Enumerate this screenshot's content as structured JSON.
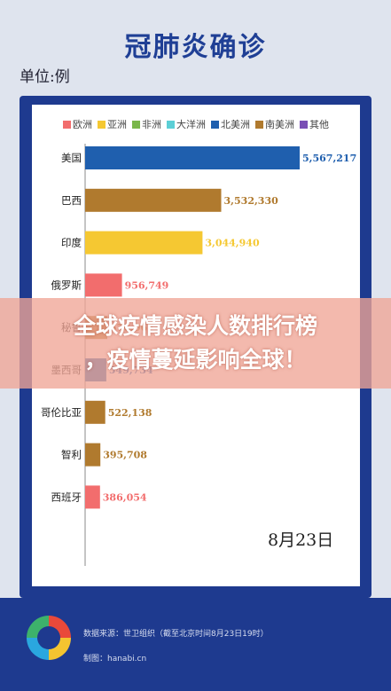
{
  "header": {
    "title": "冠肺炎确诊",
    "unit": "单位:例"
  },
  "legend": [
    {
      "name": "欧洲",
      "color": "#f26d6d"
    },
    {
      "name": "亚洲",
      "color": "#f5c832"
    },
    {
      "name": "非洲",
      "color": "#7ab74a"
    },
    {
      "name": "大洋洲",
      "color": "#5ccfd6"
    },
    {
      "name": "北美洲",
      "color": "#1f5fae"
    },
    {
      "name": "南美洲",
      "color": "#b07a2e"
    },
    {
      "name": "其他",
      "color": "#7a4fb5"
    }
  ],
  "chart_data": {
    "type": "bar",
    "orientation": "horizontal",
    "categories": [
      "美国",
      "巴西",
      "印度",
      "俄罗斯",
      "秘鲁",
      "墨西哥",
      "哥伦比亚",
      "智利",
      "西班牙"
    ],
    "values": [
      5567217,
      3532330,
      3044940,
      956749,
      576067,
      549734,
      522138,
      395708,
      386054
    ],
    "value_labels": [
      "5,567,217",
      "3,532,330",
      "3,044,940",
      "956,749",
      "576,067",
      "549,734",
      "522,138",
      "395,708",
      "386,054"
    ],
    "regions": [
      "北美洲",
      "南美洲",
      "亚洲",
      "欧洲",
      "南美洲",
      "北美洲",
      "南美洲",
      "南美洲",
      "欧洲"
    ],
    "xlim": [
      0,
      5567217
    ],
    "grid": false,
    "legend_position": "top"
  },
  "date": "8月23日",
  "banner": {
    "line1": "全球疫情感染人数排行榜",
    "line2": "，疫情蔓延影响全球！"
  },
  "footer": {
    "source": "数据来源：世卫组织（截至北京时间8月23日19时）",
    "credit": "制图：hanabi.cn"
  }
}
